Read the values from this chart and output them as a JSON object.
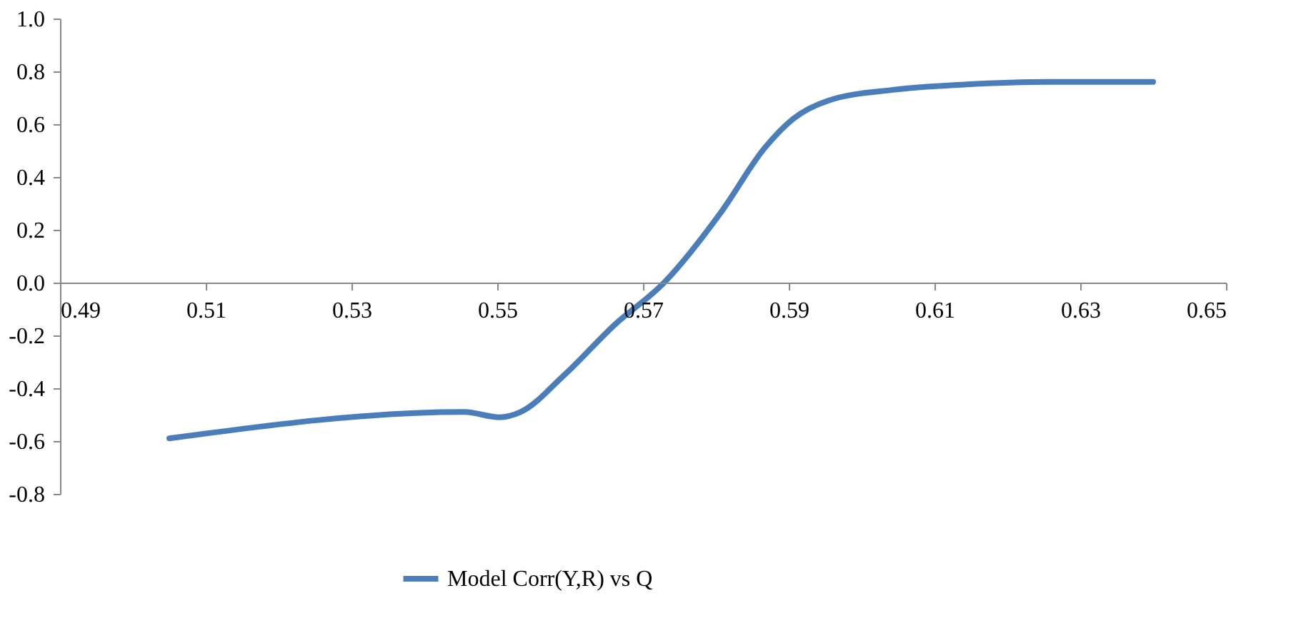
{
  "chart_data": {
    "type": "line",
    "xlim": [
      0.49,
      0.65
    ],
    "xticks": [
      0.49,
      0.51,
      0.53,
      0.55,
      0.57,
      0.59,
      0.61,
      0.63,
      0.65
    ],
    "ylim": [
      -0.8,
      1.0
    ],
    "yticks": [
      -0.8,
      -0.6,
      -0.4,
      -0.2,
      {
        "value": 0,
        "label": "0.0"
      },
      0.2,
      0.4,
      0.6,
      0.8,
      {
        "value": 1,
        "label": "1.0"
      }
    ],
    "grid": false,
    "legend": "bottom",
    "marker": "none",
    "line_style": "solid",
    "series": [
      {
        "name": "Model Corr(Y,R) vs Q",
        "color": "#4a7ebb",
        "x": [
          0.505,
          0.5455,
          0.5503,
          0.5532,
          0.5592,
          0.5661,
          0.5729,
          0.5808,
          0.5867,
          0.5906,
          0.5955,
          0.6043,
          0.6141,
          0.6259,
          0.64
        ],
        "values": [
          -0.59,
          -0.49,
          -0.51,
          -0.49,
          -0.35,
          -0.16,
          0.0,
          0.27,
          0.51,
          0.62,
          0.69,
          0.73,
          0.75,
          0.76,
          0.76
        ]
      }
    ]
  }
}
